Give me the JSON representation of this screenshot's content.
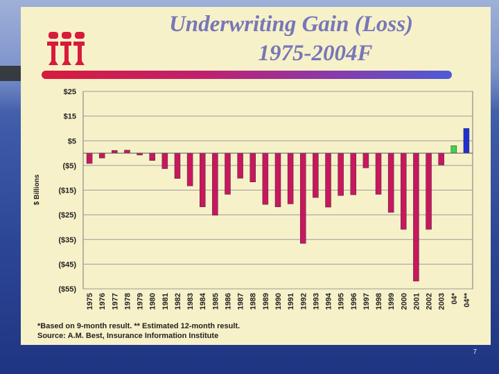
{
  "slide": {
    "title_line1": "Underwriting Gain (Loss)",
    "title_line2": "1975-2004F",
    "logo_text": "iii",
    "footnote_line1": "*Based on 9-month result. ** Estimated 12-month result.",
    "footnote_line2": "Source:  A.M. Best, Insurance Information Institute",
    "page_number": "7"
  },
  "colors": {
    "bar_default": "#c8175e",
    "bar_2004_9mo": "#3fd24a",
    "bar_2004_est": "#1f2fd0",
    "title": "#7777b8",
    "logo": "#d81b3a"
  },
  "chart_data": {
    "type": "bar",
    "title": "Underwriting Gain (Loss) 1975-2004F",
    "ylabel": "$ Billions",
    "xlabel": "",
    "ylim": [
      -55,
      25
    ],
    "y_ticks": [
      25,
      15,
      5,
      -5,
      -15,
      -25,
      -35,
      -45,
      -55
    ],
    "y_tick_labels": [
      "$25",
      "$15",
      "$5",
      "($5)",
      "($15)",
      "($25)",
      "($35)",
      "($45)",
      "($55)"
    ],
    "grid": true,
    "categories": [
      "1975",
      "1976",
      "1977",
      "1978",
      "1979",
      "1980",
      "1981",
      "1982",
      "1983",
      "1984",
      "1985",
      "1986",
      "1987",
      "1988",
      "1989",
      "1990",
      "1991",
      "1992",
      "1993",
      "1994",
      "1995",
      "1996",
      "1997",
      "1998",
      "1999",
      "2000",
      "2001",
      "2002",
      "2003",
      "04*",
      "04**"
    ],
    "values": [
      -4.2,
      -2.0,
      1.1,
      1.2,
      -0.8,
      -3.0,
      -6.3,
      -10.3,
      -13.3,
      -21.8,
      -25.2,
      -16.7,
      -10.2,
      -11.7,
      -20.8,
      -21.8,
      -20.6,
      -36.6,
      -18.0,
      -21.9,
      -17.2,
      -16.9,
      -6.0,
      -16.7,
      -24.0,
      -30.9,
      -51.9,
      -30.9,
      -4.8,
      3.0,
      10.0
    ]
  }
}
